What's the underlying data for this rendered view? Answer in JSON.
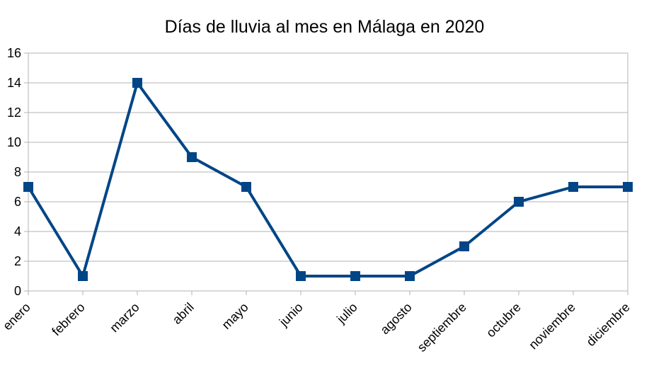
{
  "chart_data": {
    "type": "line",
    "title": "Días de lluvia al mes en Málaga en 2020",
    "xlabel": "",
    "ylabel": "",
    "categories": [
      "enero",
      "febrero",
      "marzo",
      "abril",
      "mayo",
      "junio",
      "julio",
      "agosto",
      "septiembre",
      "octubre",
      "noviembre",
      "diciembre"
    ],
    "series": [
      {
        "values": [
          7,
          1,
          14,
          9,
          7,
          1,
          1,
          1,
          3,
          6,
          7,
          7
        ],
        "color": "#004586",
        "marker": "square"
      }
    ],
    "ylim": [
      0,
      16
    ],
    "yticks": [
      0,
      2,
      4,
      6,
      8,
      10,
      12,
      14,
      16
    ],
    "grid": true,
    "legend": "none"
  }
}
